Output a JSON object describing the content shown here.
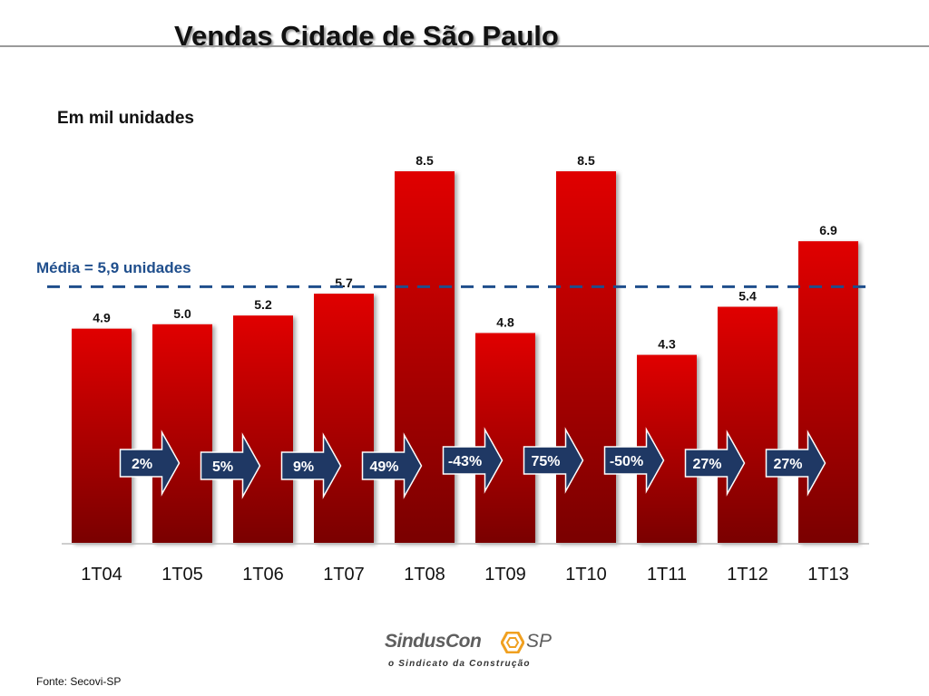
{
  "page": {
    "title": "Vendas Cidade de São Paulo",
    "unit_note": "Em mil unidades",
    "average_label": "Média = 5,9 unidades",
    "source": "Fonte: Secovi-SP",
    "logo": {
      "name": "SindusCon",
      "suffix": "SP",
      "tagline": "o Sindicato da Construção"
    }
  },
  "chart_data": {
    "type": "bar",
    "categories": [
      "1T04",
      "1T05",
      "1T06",
      "1T07",
      "1T08",
      "1T09",
      "1T10",
      "1T11",
      "1T12",
      "1T13"
    ],
    "values": [
      4.9,
      5.0,
      5.2,
      5.7,
      8.5,
      4.8,
      8.5,
      4.3,
      5.4,
      6.9
    ],
    "value_labels": [
      "4.9",
      "5.0",
      "5.2",
      "5.7",
      "8.5",
      "4.8",
      "8.5",
      "4.3",
      "5.4",
      "6.9"
    ],
    "growth_labels": [
      "2%",
      "5%",
      "9%",
      "49%",
      "-43%",
      "75%",
      "-50%",
      "27%",
      "27%"
    ],
    "average": 5.9,
    "ylim": [
      0,
      8.5
    ],
    "title": "Vendas Cidade de São Paulo",
    "xlabel": "",
    "ylabel": "",
    "grid": false,
    "legend": "none",
    "colors": {
      "bar_top": "#e00000",
      "bar_bottom": "#7a0000",
      "average_line": "#1f4e8c",
      "arrow_fill": "#1f3864",
      "arrow_stroke": "#ffffff"
    }
  }
}
